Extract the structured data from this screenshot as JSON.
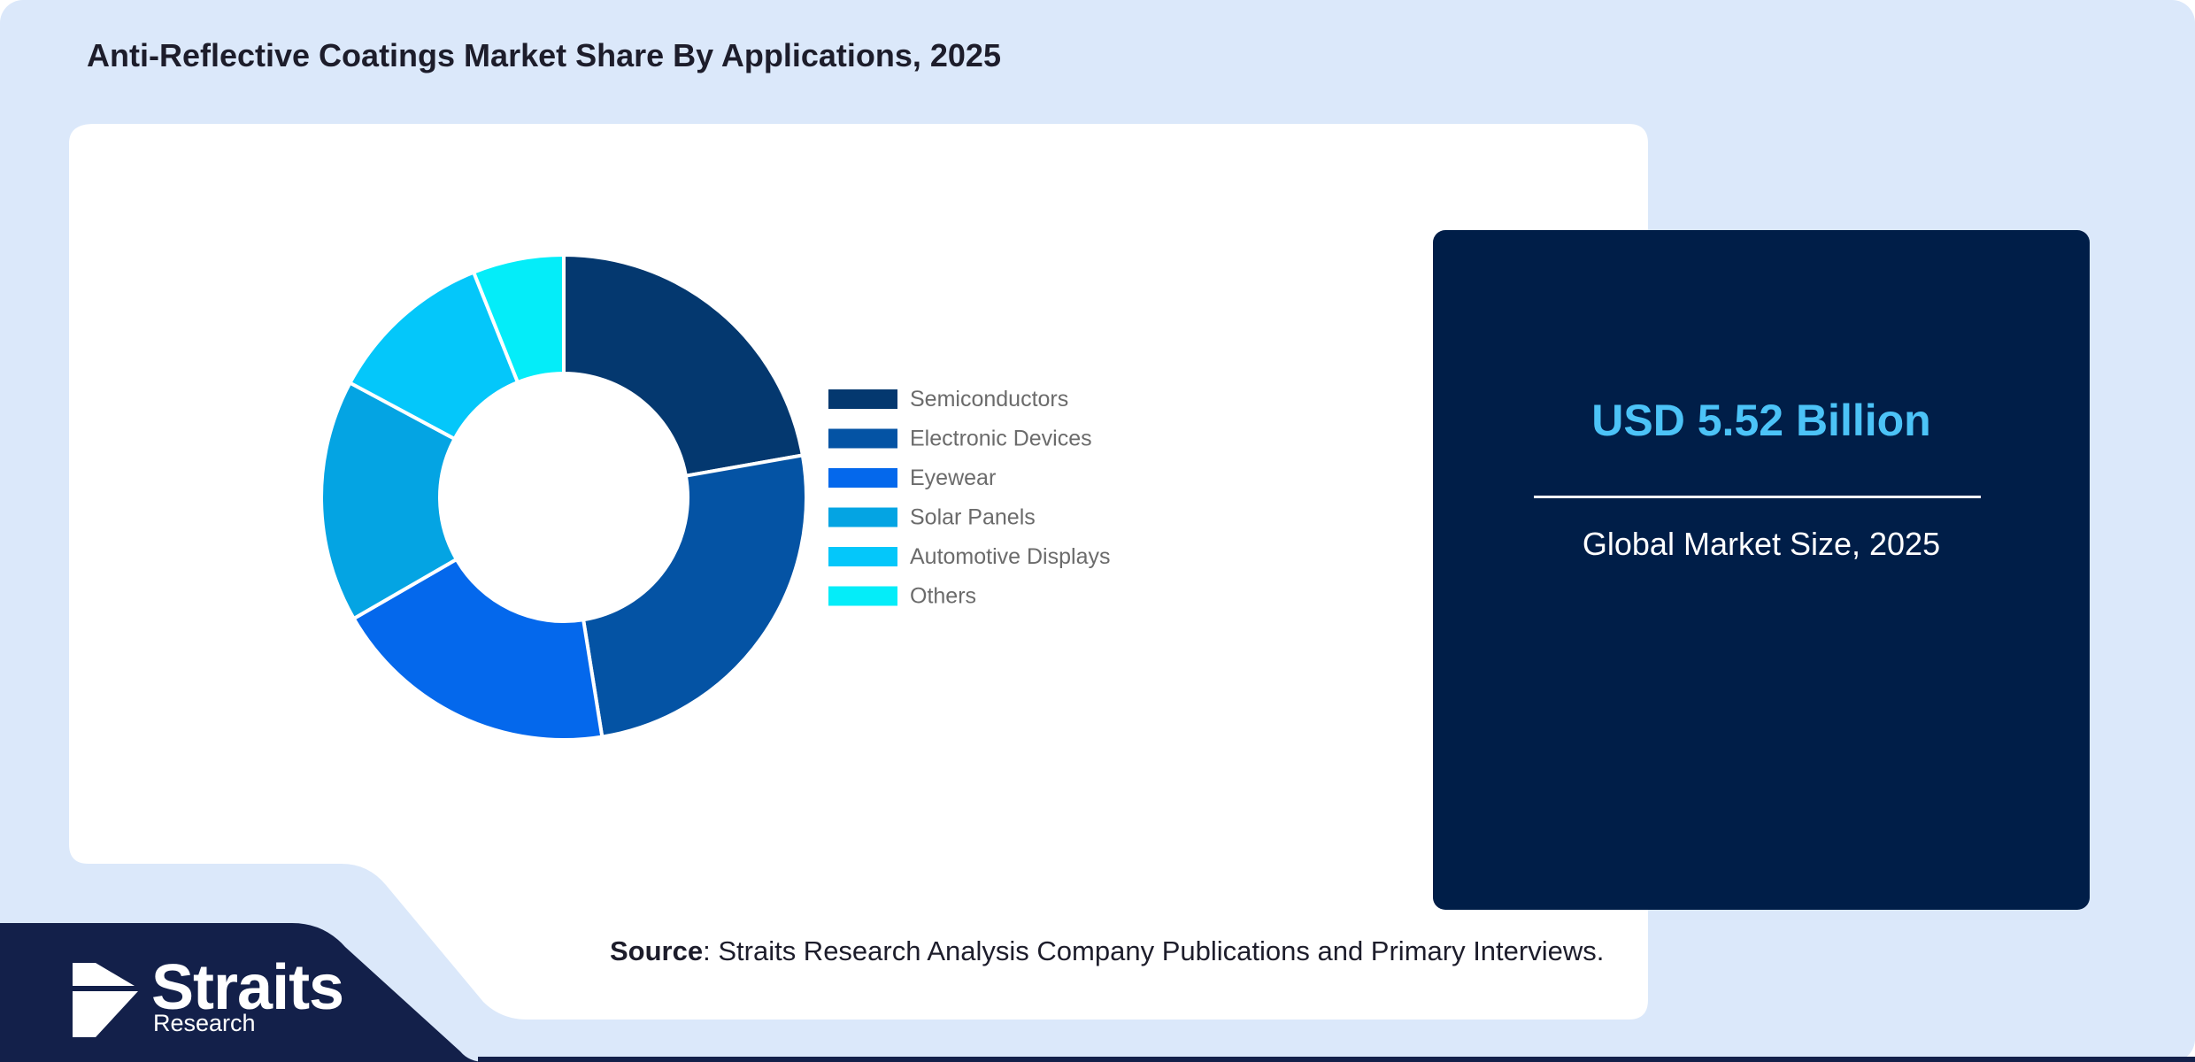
{
  "colors": {
    "page_background": "#dbe8fa",
    "card_background": "#ffffff",
    "panel_background": "#001e48",
    "panel_value": "#4cc3f7",
    "footer_band": "#13204a"
  },
  "chart_data": {
    "type": "pie",
    "variant": "donut",
    "title": "Anti-Reflective Coatings Market Share By Applications, 2025",
    "categories": [
      "Semiconductors",
      "Electronic Devices",
      "Eyewear",
      "Solar Panels",
      "Automotive Displays",
      "Others"
    ],
    "values": [
      22,
      25,
      19,
      16,
      11,
      6
    ],
    "unit": "%",
    "colors": [
      "#04386f",
      "#0453a4",
      "#0468ec",
      "#04a4e3",
      "#04c7fa",
      "#04edf9"
    ],
    "legend_position": "right",
    "data_labels": false
  },
  "summary_panel": {
    "value": "USD 5.52 Billion",
    "label": "Global Market Size, 2025"
  },
  "source": {
    "prefix": "Source",
    "text": ": Straits Research Analysis Company Publications and Primary Interviews."
  },
  "logo": {
    "icon": "straits-arrow-logo-icon",
    "name": "Straits",
    "tagline": "Research"
  }
}
